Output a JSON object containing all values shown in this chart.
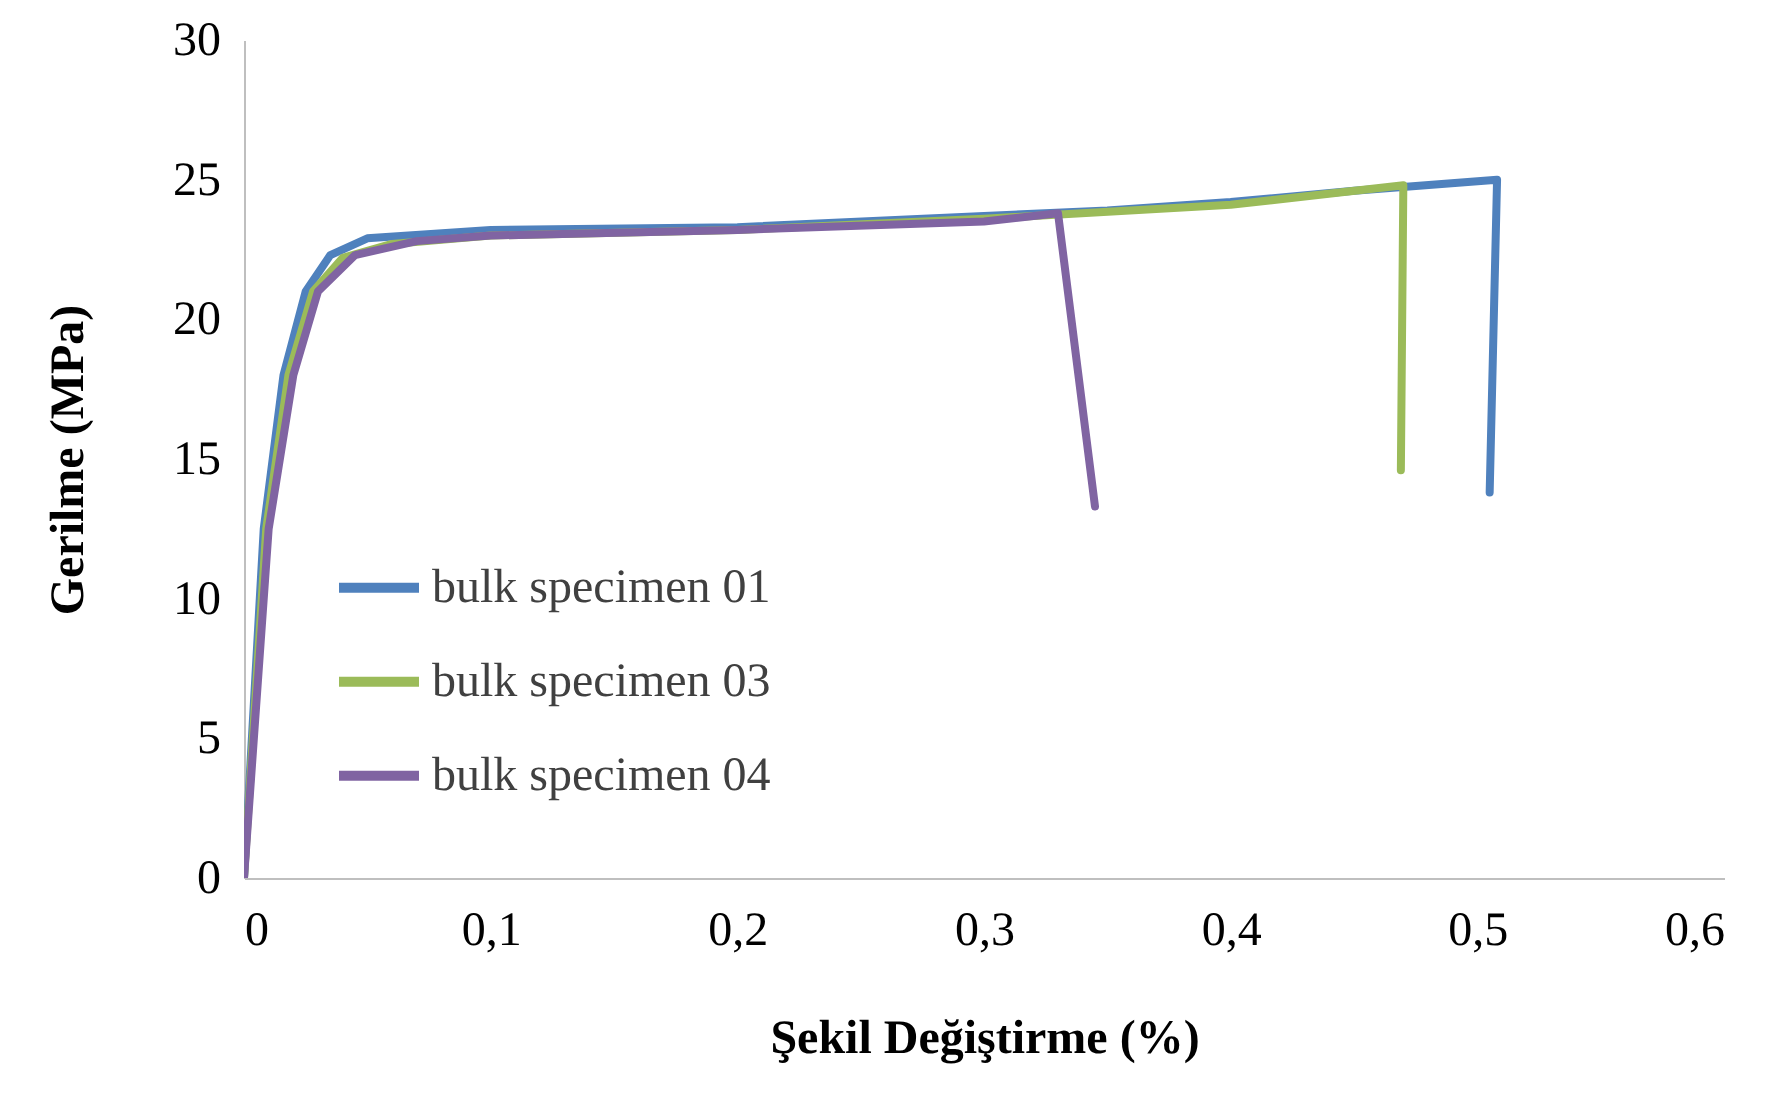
{
  "chart_data": {
    "type": "line",
    "xlabel": "Şekil Değiştirme (%)",
    "ylabel": "Gerilme (MPa)",
    "xlim": [
      0,
      0.6
    ],
    "xticks": [
      {
        "value": 0,
        "label": "0"
      },
      {
        "value": 0.1,
        "label": "0,1"
      },
      {
        "value": 0.2,
        "label": "0,2"
      },
      {
        "value": 0.3,
        "label": "0,3"
      },
      {
        "value": 0.4,
        "label": "0,4"
      },
      {
        "value": 0.5,
        "label": "0,5"
      },
      {
        "value": 0.6,
        "label": "0,6"
      }
    ],
    "ylim": [
      0,
      30
    ],
    "yticks": [
      0,
      5,
      10,
      15,
      20,
      25,
      30
    ],
    "grid": false,
    "legend": "left",
    "marker": "none",
    "line_style": "solid",
    "series": [
      {
        "name": "bulk specimen 01",
        "color": "#4f81bd",
        "x": [
          0,
          0.008,
          0.016,
          0.025,
          0.035,
          0.05,
          0.1,
          0.2,
          0.3,
          0.35,
          0.4,
          0.45,
          0.508,
          0.505
        ],
        "values": [
          0,
          12.5,
          18,
          21,
          22.3,
          22.9,
          23.2,
          23.3,
          23.7,
          23.9,
          24.2,
          24.6,
          25.0,
          13.8
        ]
      },
      {
        "name": "bulk specimen 03",
        "color": "#9bbb59",
        "x": [
          0,
          0.009,
          0.018,
          0.028,
          0.04,
          0.06,
          0.1,
          0.2,
          0.3,
          0.4,
          0.47,
          0.469
        ],
        "values": [
          0,
          12.5,
          18,
          21,
          22.2,
          22.7,
          23.0,
          23.2,
          23.6,
          24.1,
          24.8,
          14.6
        ]
      },
      {
        "name": "bulk specimen 04",
        "color": "#8064a2",
        "x": [
          0,
          0.01,
          0.02,
          0.03,
          0.045,
          0.07,
          0.1,
          0.2,
          0.3,
          0.33,
          0.345
        ],
        "values": [
          0,
          12.5,
          18,
          21,
          22.3,
          22.8,
          23.0,
          23.2,
          23.5,
          23.8,
          13.3
        ]
      }
    ]
  }
}
